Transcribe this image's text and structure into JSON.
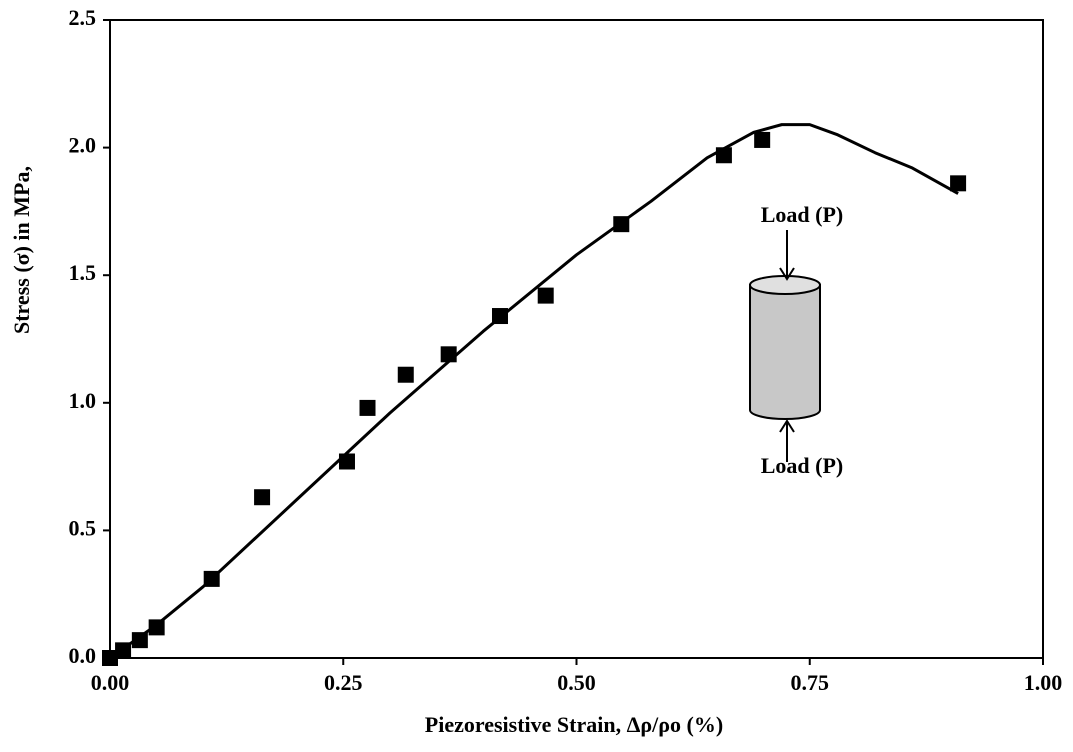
{
  "chart_data": {
    "type": "scatter",
    "x_label": "Piezoresistive Strain,  Δρ/ρo (%)",
    "y_label": "Stress (σ) in MPa,",
    "annotations": [
      "Load (P)",
      "Load (P)"
    ],
    "xlim": [
      0,
      1
    ],
    "ylim": [
      0,
      2.5
    ],
    "xticks": [
      {
        "value": 0,
        "label": "0.00"
      },
      {
        "value": 0.25,
        "label": "0.25"
      },
      {
        "value": 0.5,
        "label": "0.50"
      },
      {
        "value": 0.75,
        "label": "0.75"
      },
      {
        "value": 1,
        "label": "1.00"
      }
    ],
    "yticks": [
      {
        "value": 0,
        "label": "0.0"
      },
      {
        "value": 0.5,
        "label": "0.5"
      },
      {
        "value": 1,
        "label": "1.0"
      },
      {
        "value": 1.5,
        "label": "1.5"
      },
      {
        "value": 2,
        "label": "2.0"
      },
      {
        "value": 2.5,
        "label": "2.5"
      }
    ],
    "grid": false,
    "series": [
      {
        "color": "#000000",
        "marker": "square",
        "x": [
          0.0,
          0.014,
          0.032,
          0.05,
          0.109,
          0.163,
          0.254,
          0.276,
          0.317,
          0.363,
          0.418,
          0.467,
          0.548,
          0.658,
          0.699,
          0.909
        ],
        "values": [
          0.0,
          0.03,
          0.07,
          0.12,
          0.31,
          0.63,
          0.77,
          0.98,
          1.11,
          1.19,
          1.34,
          1.42,
          1.7,
          1.97,
          2.03,
          1.86
        ]
      },
      {
        "color": "#000000",
        "line": true,
        "x": [
          0.0,
          0.05,
          0.1,
          0.2,
          0.3,
          0.4,
          0.5,
          0.58,
          0.64,
          0.69,
          0.72,
          0.75,
          0.78,
          0.82,
          0.86,
          0.909
        ],
        "values": [
          0.0,
          0.13,
          0.28,
          0.62,
          0.96,
          1.28,
          1.58,
          1.79,
          1.96,
          2.06,
          2.09,
          2.09,
          2.05,
          1.98,
          1.92,
          1.82
        ]
      }
    ]
  }
}
